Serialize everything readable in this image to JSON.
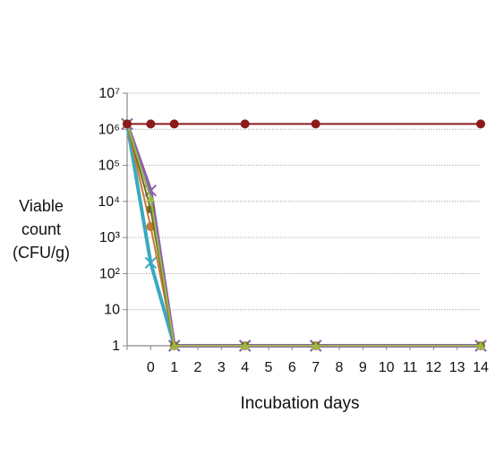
{
  "chart_data": {
    "type": "line",
    "xlabel": "Incubation days",
    "ylabel_lines": [
      "Viable",
      "count",
      "(CFU/g)"
    ],
    "y_scale": "log",
    "ylim": [
      1,
      10000000
    ],
    "y_ticks": [
      {
        "value": 1,
        "label": "1"
      },
      {
        "value": 10,
        "label": "10"
      },
      {
        "value": 100,
        "label": "10²"
      },
      {
        "value": 1000,
        "label": "10³"
      },
      {
        "value": 10000,
        "label": "10⁴"
      },
      {
        "value": 100000,
        "label": "10⁵"
      },
      {
        "value": 1000000,
        "label": "10⁶"
      },
      {
        "value": 10000000,
        "label": "10⁷"
      }
    ],
    "x_ticks": [
      "",
      "0",
      "1",
      "2",
      "3",
      "4",
      "5",
      "6",
      "7",
      "8",
      "9",
      "10",
      "11",
      "12",
      "13",
      "14"
    ],
    "grid": true,
    "series": [
      {
        "color": "#8b1a1a",
        "marker": "circle",
        "points": [
          [
            -1,
            1400000
          ],
          [
            0,
            1400000
          ],
          [
            1,
            1400000
          ],
          [
            4,
            1400000
          ],
          [
            7,
            1400000
          ],
          [
            14,
            1400000
          ]
        ]
      },
      {
        "color": "#9ab84a",
        "marker": "triangle",
        "points": [
          [
            -1,
            1400000
          ],
          [
            0,
            12000
          ],
          [
            1,
            1
          ],
          [
            4,
            1
          ],
          [
            7,
            1
          ],
          [
            14,
            1
          ]
        ]
      },
      {
        "color": "#6b6b2a",
        "marker": "square",
        "points": [
          [
            -1,
            1400000
          ],
          [
            0,
            6000
          ],
          [
            1,
            1
          ],
          [
            4,
            1
          ],
          [
            7,
            1
          ],
          [
            14,
            1
          ]
        ]
      },
      {
        "color": "#c9782e",
        "marker": "circle",
        "points": [
          [
            -1,
            1400000
          ],
          [
            0,
            2000
          ],
          [
            1,
            1
          ],
          [
            4,
            1
          ],
          [
            7,
            1
          ],
          [
            14,
            1
          ]
        ]
      },
      {
        "color": "#8a60b0",
        "marker": "x",
        "points": [
          [
            -1,
            1400000
          ],
          [
            0,
            20000
          ],
          [
            1,
            1
          ],
          [
            4,
            1
          ],
          [
            7,
            1
          ],
          [
            14,
            1
          ]
        ]
      },
      {
        "color": "#3aa9c0",
        "marker": "x",
        "points": [
          [
            -1,
            1400000
          ],
          [
            0,
            200
          ],
          [
            1,
            1
          ],
          [
            4,
            1
          ],
          [
            7,
            1
          ],
          [
            14,
            1
          ]
        ]
      }
    ]
  }
}
